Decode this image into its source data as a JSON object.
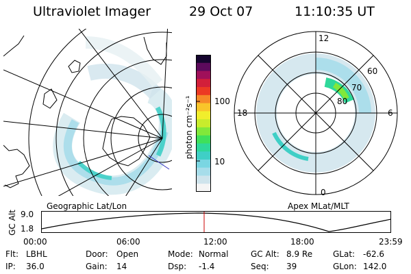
{
  "header": {
    "title": "Ultraviolet Imager",
    "date": "29 Oct 07",
    "time": "11:10:35 UT"
  },
  "colorbar": {
    "unit": "photon cm⁻²s⁻¹",
    "ticks": [
      {
        "label": "100",
        "value": 100
      },
      {
        "label": "10",
        "value": 10
      }
    ],
    "colors": [
      "#f5f5f5",
      "#cfe4ec",
      "#a7ddea",
      "#7ad6e2",
      "#3fcfc6",
      "#2fd89a",
      "#3fe05b",
      "#82e83a",
      "#c8ec2c",
      "#f1ee2c",
      "#f9c52a",
      "#f68a28",
      "#ec3a23",
      "#d21f3a",
      "#a0105a",
      "#5c0a5c",
      "#15052e"
    ]
  },
  "left_map": {
    "label": "Geographic Lat/Lon"
  },
  "right_map": {
    "label": "Apex  MLat/MLT",
    "mlt_labels": {
      "top": "12",
      "left": "18",
      "right": "6",
      "bottom": "0"
    },
    "mlat_labels": [
      "60",
      "70",
      "80"
    ]
  },
  "timeline": {
    "ylabel": "GC Alt",
    "ytick_top": "9.0",
    "ytick_bottom": "1.8",
    "x_labels": [
      "00:00",
      "06:00",
      "12:00",
      "18:00",
      "23:59"
    ],
    "current_time_hours": 11.18,
    "accent_color": "#cc0000"
  },
  "info": {
    "filter_label": "Flt:",
    "filter_value": "LBHL",
    "ip_label": "IP:",
    "ip_value": "36.0",
    "door_label": "Door:",
    "door_value": "Open",
    "gain_label": "Gain:",
    "gain_value": "14",
    "mode_label": "Mode:",
    "mode_value": "Normal",
    "dsp_label": "Dsp:",
    "dsp_value": "-1.4",
    "gcalt_label": "GC Alt:",
    "gcalt_value": "8.9 Re",
    "seq_label": "Seq:",
    "seq_value": "39",
    "glat_label": "GLat:",
    "glat_value": "-62.6",
    "glon_label": "GLon:",
    "glon_value": "142.0"
  }
}
